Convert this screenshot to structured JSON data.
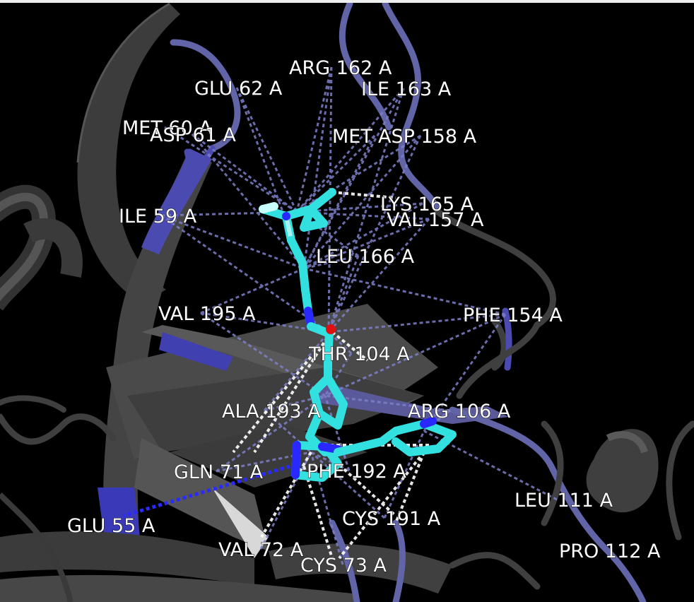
{
  "viewer": {
    "background_color": "#000000",
    "protein_color": "#3f3f3f",
    "highlight_color": "#6264a8",
    "contact_color": "#7d80c8",
    "ligand_carbon_color": "#33e0e0",
    "ligand_nitrogen_color": "#2828ff",
    "ligand_oxygen_color": "#e01010",
    "hbond_color": "#ffffff",
    "label_color": "#ffffff"
  },
  "residues": [
    {
      "id": "arg162",
      "label": "ARG 162 A"
    },
    {
      "id": "glu62",
      "label": "GLU 62 A"
    },
    {
      "id": "ile163",
      "label": "ILE 163 A"
    },
    {
      "id": "met60",
      "label": "MET 60 A"
    },
    {
      "id": "asp61",
      "label": "ASP 61 A"
    },
    {
      "id": "met",
      "label": "MET"
    },
    {
      "id": "asp158",
      "label": "ASP 158 A"
    },
    {
      "id": "lys165",
      "label": "LYS 165 A"
    },
    {
      "id": "val157",
      "label": "VAL 157 A"
    },
    {
      "id": "ile59",
      "label": "ILE 59 A"
    },
    {
      "id": "leu166",
      "label": "LEU 166 A"
    },
    {
      "id": "val195",
      "label": "VAL 195 A"
    },
    {
      "id": "phe154",
      "label": "PHE 154 A"
    },
    {
      "id": "thr104",
      "label": "THR 104 A"
    },
    {
      "id": "ala193",
      "label": "ALA 193 A"
    },
    {
      "id": "arg106",
      "label": "ARG 106 A"
    },
    {
      "id": "gln71",
      "label": "GLN 71 A"
    },
    {
      "id": "phe192",
      "label": "PHE 192 A"
    },
    {
      "id": "leu111",
      "label": "LEU 111 A"
    },
    {
      "id": "cys191",
      "label": "CYS 191 A"
    },
    {
      "id": "glu55",
      "label": "GLU 55 A"
    },
    {
      "id": "val72",
      "label": "VAL 72 A"
    },
    {
      "id": "pro112",
      "label": "PRO 112 A"
    },
    {
      "id": "cys73",
      "label": "CYS 73 A"
    }
  ]
}
